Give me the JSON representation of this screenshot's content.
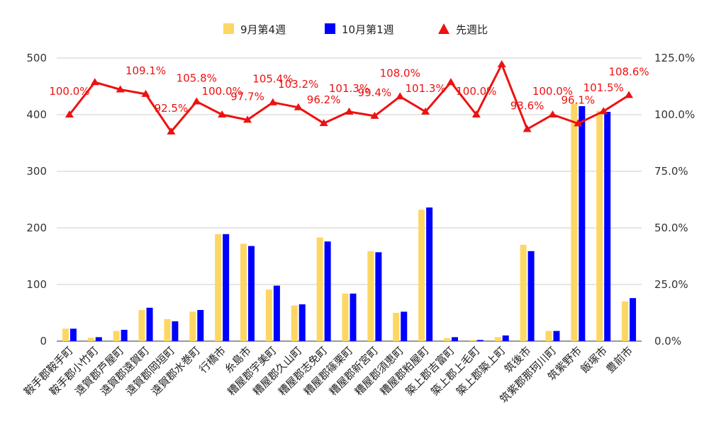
{
  "chart_data": {
    "type": "bar",
    "categories": [
      "鞍手郡鞍手町",
      "鞍手郡小竹町",
      "遠賀郡芦屋町",
      "遠賀郡遠賀町",
      "遠賀郡岡垣町",
      "遠賀郡水巻町",
      "行橋市",
      "糸島市",
      "糟屋郡宇美町",
      "糟屋郡久山町",
      "糟屋郡志免町",
      "糟屋郡篠栗町",
      "糟屋郡新宮町",
      "糟屋郡須恵町",
      "糟屋郡粕屋町",
      "築上郡吉富町",
      "築上郡上毛町",
      "築上郡築上町",
      "筑後市",
      "筑紫郡那珂川町",
      "筑紫野市",
      "飯塚市",
      "豊前市"
    ],
    "series": [
      {
        "name": "9月第4週",
        "type": "bar",
        "axis": "left",
        "color": "#fdd663",
        "values": [
          22,
          6,
          18,
          55,
          39,
          52,
          189,
          172,
          91,
          63,
          183,
          84,
          159,
          50,
          232,
          5,
          2,
          7,
          170,
          18,
          420,
          407,
          70
        ]
      },
      {
        "name": "10月第1週",
        "type": "bar",
        "axis": "left",
        "color": "#0000ff",
        "values": [
          22,
          7,
          20,
          59,
          35,
          55,
          189,
          168,
          98,
          65,
          176,
          84,
          157,
          52,
          236,
          7,
          2,
          10,
          159,
          18,
          415,
          405,
          76
        ]
      },
      {
        "name": "先週比",
        "type": "line",
        "axis": "right",
        "color": "#ee1111",
        "values": [
          100.0,
          114.3,
          111.1,
          109.1,
          92.5,
          105.8,
          100.0,
          97.7,
          105.4,
          103.2,
          96.2,
          101.3,
          99.4,
          108.0,
          101.3,
          114.3,
          100.0,
          122.2,
          93.6,
          100.0,
          96.1,
          101.5,
          108.6
        ],
        "labels": [
          "100.0%",
          "",
          "",
          "109.1%",
          "92.5%",
          "105.8%",
          "100.0%",
          "97.7%",
          "105.4%",
          "103.2%",
          "96.2%",
          "101.3%",
          "99.4%",
          "108.0%",
          "101.3%",
          "",
          "100.0%",
          "",
          "93.6%",
          "100.0%",
          "96.1%",
          "101.5%",
          "108.6%"
        ]
      }
    ],
    "y_left": {
      "min": 0,
      "max": 500,
      "ticks": [
        "0",
        "100",
        "200",
        "300",
        "400",
        "500"
      ]
    },
    "y_right": {
      "min": 0,
      "max": 125,
      "ticks": [
        "0.0%",
        "25.0%",
        "50.0%",
        "75.0%",
        "100.0%",
        "125.0%"
      ]
    },
    "grid": true,
    "legend_position": "top"
  }
}
